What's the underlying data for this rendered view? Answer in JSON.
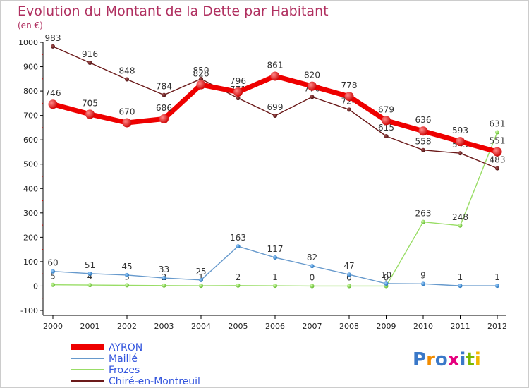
{
  "chart_data": {
    "type": "line",
    "title": "Evolution du Montant de la Dette par Habitant",
    "subtitle": "(en €)",
    "x": [
      "2000",
      "2001",
      "2002",
      "2003",
      "2004",
      "2005",
      "2006",
      "2007",
      "2008",
      "2009",
      "2010",
      "2011",
      "2012"
    ],
    "ylim": [
      -100,
      1000
    ],
    "yticks": [
      -100,
      0,
      100,
      200,
      300,
      400,
      500,
      600,
      700,
      800,
      900,
      1000
    ],
    "grid": false,
    "legend_position": "bottom-left",
    "series": [
      {
        "name": "Chiré-en-Montreuil",
        "color": "#6b1a1a",
        "values": [
          983,
          916,
          848,
          784,
          850,
          771,
          699,
          776,
          724,
          615,
          558,
          545,
          483
        ]
      },
      {
        "name": "Frozes",
        "color": "#99dd66",
        "values": [
          5,
          4,
          3,
          2,
          1,
          2,
          1,
          0,
          0,
          0,
          263,
          248,
          631
        ]
      },
      {
        "name": "Maillé",
        "color": "#6699cc",
        "values": [
          60,
          51,
          45,
          33,
          25,
          163,
          117,
          82,
          47,
          10,
          9,
          1,
          1
        ]
      },
      {
        "name": "AYRON",
        "color": "#ee0000",
        "values": [
          746,
          705,
          670,
          686,
          826,
          796,
          861,
          820,
          778,
          679,
          636,
          593,
          551
        ]
      }
    ]
  },
  "brand": {
    "text": "Proxiti"
  }
}
